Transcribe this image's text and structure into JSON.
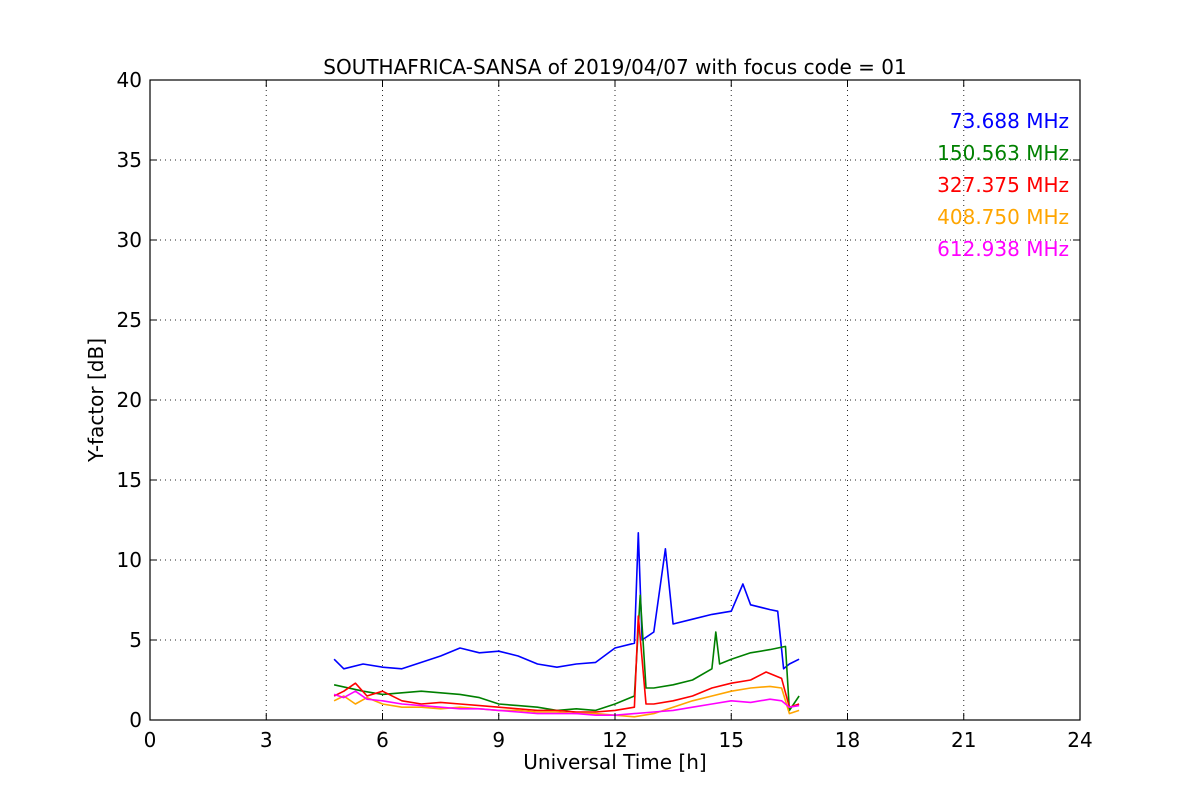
{
  "chart_data": {
    "type": "line",
    "title": "SOUTHAFRICA-SANSA of 2019/04/07 with focus code = 01",
    "xlabel": "Universal Time [h]",
    "ylabel": "Y-factor [dB]",
    "xlim": [
      0,
      24
    ],
    "ylim": [
      0,
      40
    ],
    "xticks": [
      "0",
      "3",
      "6",
      "9",
      "12",
      "15",
      "18",
      "21",
      "24"
    ],
    "yticks": [
      "0",
      "5",
      "10",
      "15",
      "20",
      "25",
      "30",
      "35",
      "40"
    ],
    "grid": true,
    "legend_position": "top-right",
    "series": [
      {
        "name": "73.688 MHz",
        "color": "#0000ff",
        "x": [
          4.75,
          5.0,
          5.5,
          6.0,
          6.5,
          7.0,
          7.5,
          8.0,
          8.5,
          9.0,
          9.5,
          10.0,
          10.5,
          11.0,
          11.5,
          12.0,
          12.5,
          12.6,
          12.7,
          13.0,
          13.3,
          13.5,
          14.0,
          14.5,
          15.0,
          15.3,
          15.5,
          16.0,
          16.2,
          16.35,
          16.5,
          16.75
        ],
        "y": [
          3.8,
          3.2,
          3.5,
          3.3,
          3.2,
          3.6,
          4.0,
          4.5,
          4.2,
          4.3,
          4.0,
          3.5,
          3.3,
          3.5,
          3.6,
          4.5,
          4.8,
          11.7,
          5.0,
          5.5,
          10.7,
          6.0,
          6.3,
          6.6,
          6.8,
          8.5,
          7.2,
          6.9,
          6.8,
          3.2,
          3.5,
          3.8
        ]
      },
      {
        "name": "150.563 MHz",
        "color": "#008000",
        "x": [
          4.75,
          5.5,
          6.0,
          6.5,
          7.0,
          7.5,
          8.0,
          8.5,
          9.0,
          9.5,
          10.0,
          10.5,
          11.0,
          11.5,
          12.0,
          12.5,
          12.65,
          12.8,
          13.0,
          13.5,
          14.0,
          14.5,
          14.6,
          14.7,
          15.0,
          15.5,
          16.0,
          16.4,
          16.5,
          16.75
        ],
        "y": [
          2.2,
          1.8,
          1.6,
          1.7,
          1.8,
          1.7,
          1.6,
          1.4,
          1.0,
          0.9,
          0.8,
          0.6,
          0.7,
          0.6,
          1.0,
          1.5,
          7.8,
          2.0,
          2.0,
          2.2,
          2.5,
          3.2,
          5.5,
          3.5,
          3.8,
          4.2,
          4.4,
          4.6,
          0.6,
          1.5
        ]
      },
      {
        "name": "327.375 MHz",
        "color": "#ff0000",
        "x": [
          4.75,
          5.0,
          5.3,
          5.6,
          6.0,
          6.5,
          7.0,
          7.5,
          8.0,
          8.5,
          9.0,
          9.5,
          10.0,
          10.5,
          11.0,
          11.5,
          12.0,
          12.5,
          12.6,
          12.8,
          13.0,
          13.5,
          14.0,
          14.5,
          15.0,
          15.5,
          15.9,
          16.3,
          16.5,
          16.75
        ],
        "y": [
          1.5,
          1.8,
          2.3,
          1.5,
          1.8,
          1.2,
          1.0,
          1.1,
          1.0,
          0.9,
          0.8,
          0.7,
          0.6,
          0.6,
          0.5,
          0.5,
          0.6,
          0.8,
          6.5,
          1.0,
          1.0,
          1.2,
          1.5,
          2.0,
          2.3,
          2.5,
          3.0,
          2.6,
          0.8,
          1.0
        ]
      },
      {
        "name": "408.750 MHz",
        "color": "#ffa500",
        "x": [
          4.75,
          5.0,
          5.3,
          5.6,
          6.0,
          6.5,
          7.0,
          7.5,
          8.0,
          8.5,
          9.0,
          9.5,
          10.0,
          10.5,
          11.0,
          11.5,
          12.0,
          12.5,
          13.0,
          13.5,
          14.0,
          14.5,
          15.0,
          15.5,
          16.0,
          16.3,
          16.5,
          16.75
        ],
        "y": [
          1.2,
          1.5,
          1.0,
          1.4,
          1.0,
          0.8,
          0.8,
          0.7,
          0.8,
          0.7,
          0.6,
          0.6,
          0.5,
          0.5,
          0.4,
          0.4,
          0.3,
          0.2,
          0.4,
          0.8,
          1.2,
          1.5,
          1.8,
          2.0,
          2.1,
          2.0,
          0.4,
          0.6
        ]
      },
      {
        "name": "612.938 MHz",
        "color": "#ff00ff",
        "x": [
          4.75,
          5.0,
          5.3,
          5.6,
          6.0,
          6.5,
          7.0,
          7.5,
          8.0,
          8.5,
          9.0,
          9.5,
          10.0,
          10.5,
          11.0,
          11.5,
          12.0,
          12.5,
          13.0,
          13.5,
          14.0,
          14.5,
          15.0,
          15.5,
          16.0,
          16.3,
          16.5,
          16.75
        ],
        "y": [
          1.6,
          1.4,
          1.8,
          1.3,
          1.2,
          1.0,
          0.9,
          0.8,
          0.7,
          0.7,
          0.6,
          0.5,
          0.4,
          0.4,
          0.4,
          0.3,
          0.3,
          0.4,
          0.5,
          0.6,
          0.8,
          1.0,
          1.2,
          1.1,
          1.3,
          1.2,
          0.8,
          0.9
        ]
      }
    ]
  }
}
